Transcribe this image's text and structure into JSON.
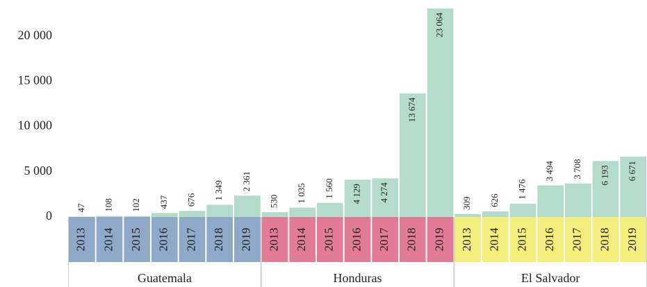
{
  "chart_data": {
    "type": "bar",
    "color": "#b3dccb",
    "ylim": [
      0,
      23000
    ],
    "yticks": [
      0,
      {
        "value": 5000,
        "label": "5 000"
      },
      {
        "value": 10000,
        "label": "10 000"
      },
      {
        "value": 15000,
        "label": "15 000"
      },
      {
        "value": 20000,
        "label": "20 000"
      }
    ],
    "groups": [
      {
        "name": "Guatemala",
        "color": "#8fa9c9",
        "categories": [
          "2013",
          "2014",
          "2015",
          "2016",
          "2017",
          "2018",
          "2019"
        ],
        "values": [
          47,
          108,
          102,
          437,
          676,
          1349,
          2361
        ],
        "value_labels": [
          "47",
          "108",
          "102",
          "437",
          "676",
          "1 349",
          "2 361"
        ]
      },
      {
        "name": "Honduras",
        "color": "#e27b96",
        "categories": [
          "2013",
          "2014",
          "2015",
          "2016",
          "2017",
          "2018",
          "2019"
        ],
        "values": [
          530,
          1035,
          1560,
          4129,
          4274,
          13674,
          23064
        ],
        "value_labels": [
          "530",
          "1 035",
          "1 560",
          "4 129",
          "4 274",
          "13 674",
          "23 064"
        ]
      },
      {
        "name": "El Salvador",
        "color": "#f4ee7c",
        "categories": [
          "2013",
          "2014",
          "2015",
          "2016",
          "2017",
          "2018",
          "2019"
        ],
        "values": [
          309,
          626,
          1476,
          3494,
          3708,
          6193,
          6671
        ],
        "value_labels": [
          "309",
          "626",
          "1 476",
          "3 494",
          "3 708",
          "6 193",
          "6 671"
        ]
      }
    ]
  }
}
